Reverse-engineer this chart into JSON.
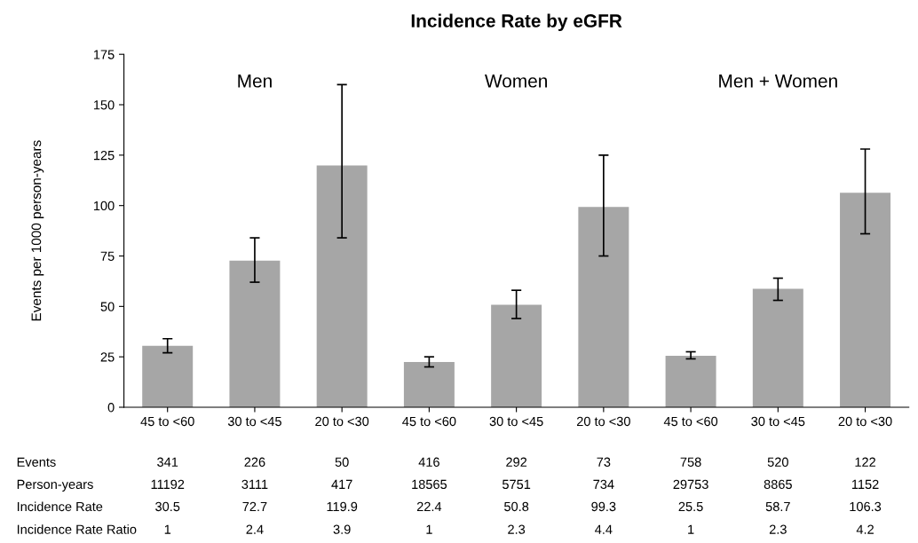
{
  "chart_data": {
    "type": "bar",
    "title": "Incidence Rate by eGFR",
    "ylabel": "Events per 1000 person-years",
    "categories": [
      "45 to <60",
      "30 to <45",
      "20 to <30",
      "45 to <60",
      "30 to <45",
      "20 to <30",
      "45 to <60",
      "30 to <45",
      "20 to <30"
    ],
    "values": [
      30.5,
      72.7,
      119.9,
      22.4,
      50.8,
      99.3,
      25.5,
      58.7,
      106.3
    ],
    "errors": [
      [
        27,
        34
      ],
      [
        62,
        84
      ],
      [
        84,
        160
      ],
      [
        20,
        25
      ],
      [
        44,
        58
      ],
      [
        75,
        125
      ],
      [
        24,
        27.5
      ],
      [
        53,
        64
      ],
      [
        86,
        128
      ]
    ],
    "color": "#a6a6a6",
    "ylim": [
      0,
      175
    ],
    "yticks": [
      0,
      25,
      50,
      75,
      100,
      125,
      150,
      175
    ],
    "grid": false,
    "legend": false,
    "annotations": [
      "Men",
      "Women",
      "Men + Women",
      "Events",
      "341",
      "226",
      "50",
      "416",
      "292",
      "73",
      "758",
      "520",
      "122",
      "Person-years",
      "11192",
      "3111",
      "417",
      "18565",
      "5751",
      "734",
      "29753",
      "8865",
      "1152",
      "Incidence Rate",
      "30.5",
      "72.7",
      "119.9",
      "22.4",
      "50.8",
      "99.3",
      "25.5",
      "58.7",
      "106.3",
      "Incidence Rate Ratio",
      "1",
      "2.4",
      "3.9",
      "1",
      "2.3",
      "4.4",
      "1",
      "2.3",
      "4.2"
    ]
  }
}
